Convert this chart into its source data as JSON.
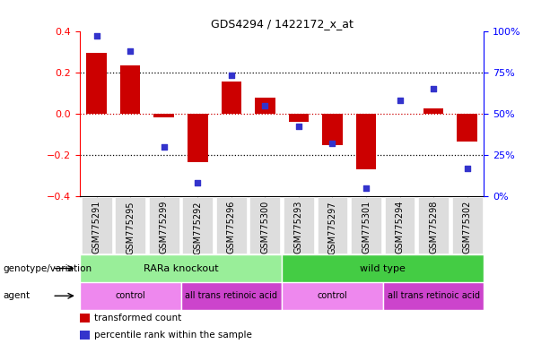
{
  "title": "GDS4294 / 1422172_x_at",
  "samples": [
    "GSM775291",
    "GSM775295",
    "GSM775299",
    "GSM775292",
    "GSM775296",
    "GSM775300",
    "GSM775293",
    "GSM775297",
    "GSM775301",
    "GSM775294",
    "GSM775298",
    "GSM775302"
  ],
  "bar_values": [
    0.295,
    0.235,
    -0.02,
    -0.235,
    0.155,
    0.075,
    -0.04,
    -0.155,
    -0.27,
    0.0,
    0.025,
    -0.135
  ],
  "dot_values": [
    97,
    88,
    30,
    8,
    73,
    55,
    42,
    32,
    5,
    58,
    65,
    17
  ],
  "bar_color": "#CC0000",
  "dot_color": "#3333CC",
  "left_ylim": [
    -0.4,
    0.4
  ],
  "right_ylim": [
    0,
    100
  ],
  "left_yticks": [
    -0.4,
    -0.2,
    0.0,
    0.2,
    0.4
  ],
  "right_yticks": [
    0,
    25,
    50,
    75,
    100
  ],
  "right_yticklabels": [
    "0%",
    "25%",
    "50%",
    "75%",
    "100%"
  ],
  "dotted_line_color_zero": "#CC0000",
  "dotted_line_color_nonzero": "black",
  "genotype_labels": [
    {
      "text": "RARa knockout",
      "start": 0,
      "end": 5,
      "color": "#99EE99"
    },
    {
      "text": "wild type",
      "start": 6,
      "end": 11,
      "color": "#44CC44"
    }
  ],
  "agent_labels": [
    {
      "text": "control",
      "start": 0,
      "end": 2,
      "color": "#EE88EE"
    },
    {
      "text": "all trans retinoic acid",
      "start": 3,
      "end": 5,
      "color": "#CC44CC"
    },
    {
      "text": "control",
      "start": 6,
      "end": 8,
      "color": "#EE88EE"
    },
    {
      "text": "all trans retinoic acid",
      "start": 9,
      "end": 11,
      "color": "#CC44CC"
    }
  ],
  "legend_items": [
    {
      "label": "transformed count",
      "color": "#CC0000"
    },
    {
      "label": "percentile rank within the sample",
      "color": "#3333CC"
    }
  ],
  "row_labels": [
    "genotype/variation",
    "agent"
  ],
  "background_color": "#FFFFFF",
  "tick_bg_color": "#DDDDDD"
}
